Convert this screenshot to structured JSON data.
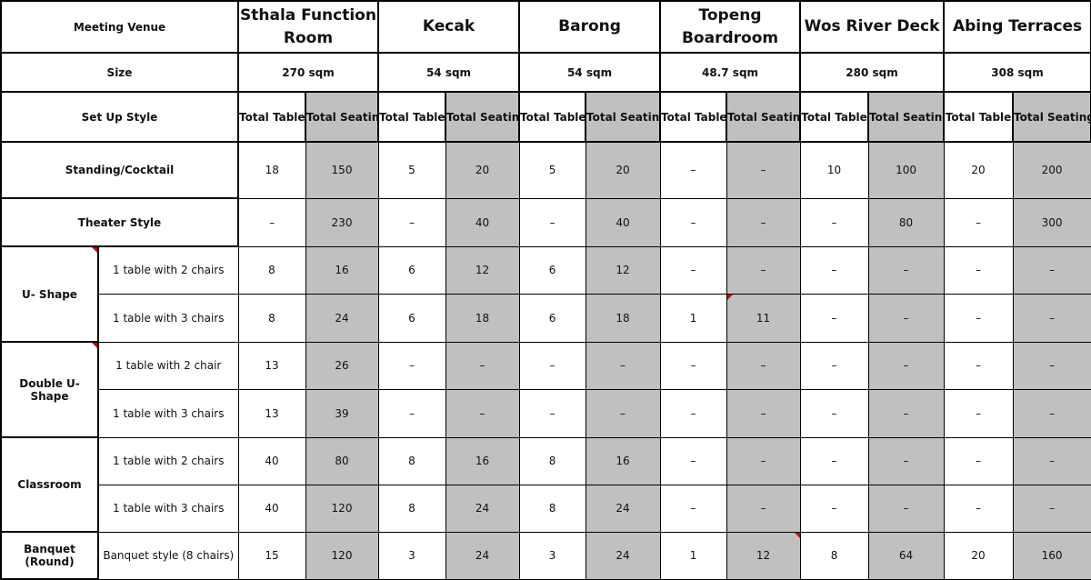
{
  "header": {
    "venue_label": "Meeting Venue",
    "size_label": "Size",
    "setup_label": "Set Up Style",
    "total_table": "Total Table",
    "total_seating": "Total Seating"
  },
  "venues": [
    {
      "name": "Sthala Function Room",
      "size": "270 sqm"
    },
    {
      "name": "Kecak",
      "size": "54 sqm"
    },
    {
      "name": "Barong",
      "size": "54 sqm"
    },
    {
      "name": "Topeng Boardroom",
      "size": "48.7 sqm"
    },
    {
      "name": "Wos River Deck",
      "size": "280 sqm"
    },
    {
      "name": "Abing Terraces",
      "size": "308 sqm"
    }
  ],
  "groups": [
    {
      "label": "Standing/Cocktail",
      "rows": [
        {
          "sub": "",
          "values": [
            "18",
            "150",
            "5",
            "20",
            "5",
            "20",
            "–",
            "–",
            "10",
            "100",
            "20",
            "200"
          ]
        }
      ]
    },
    {
      "label": "Theater Style",
      "rows": [
        {
          "sub": "",
          "values": [
            "–",
            "230",
            "–",
            "40",
            "–",
            "40",
            "–",
            "–",
            "–",
            "80",
            "–",
            "300"
          ]
        }
      ]
    },
    {
      "label": "U- Shape",
      "comment": true,
      "rows": [
        {
          "sub": "1 table with 2 chairs",
          "values": [
            "8",
            "16",
            "6",
            "12",
            "6",
            "12",
            "–",
            "–",
            "–",
            "–",
            "–",
            "–"
          ]
        },
        {
          "sub": "1 table with 3 chairs",
          "values": [
            "8",
            "24",
            "6",
            "18",
            "6",
            "18",
            "1",
            "11",
            "–",
            "–",
            "–",
            "–"
          ]
        }
      ]
    },
    {
      "label": "Double U- Shape",
      "comment": true,
      "rows": [
        {
          "sub": "1 table with 2 chair",
          "values": [
            "13",
            "26",
            "–",
            "–",
            "–",
            "–",
            "–",
            "–",
            "–",
            "–",
            "–",
            "–"
          ]
        },
        {
          "sub": "1 table with 3 chairs",
          "values": [
            "13",
            "39",
            "–",
            "–",
            "–",
            "–",
            "–",
            "–",
            "–",
            "–",
            "–",
            "–"
          ]
        }
      ]
    },
    {
      "label": "Classroom",
      "rows": [
        {
          "sub": "1 table with 2 chairs",
          "values": [
            "40",
            "80",
            "8",
            "16",
            "8",
            "16",
            "–",
            "–",
            "–",
            "–",
            "–",
            "–"
          ]
        },
        {
          "sub": "1 table with 3 chairs",
          "values": [
            "40",
            "120",
            "8",
            "24",
            "8",
            "24",
            "–",
            "–",
            "–",
            "–",
            "–",
            "–"
          ]
        }
      ]
    },
    {
      "label": "Banquet (Round)",
      "rows": [
        {
          "sub": "Banquet style (8 chairs)",
          "values": [
            "15",
            "120",
            "3",
            "24",
            "3",
            "24",
            "1",
            "12",
            "8",
            "64",
            "20",
            "160"
          ]
        }
      ]
    }
  ],
  "colors": {
    "seating_fill": "#c0c0c0",
    "comment_marker": "#d00000"
  }
}
